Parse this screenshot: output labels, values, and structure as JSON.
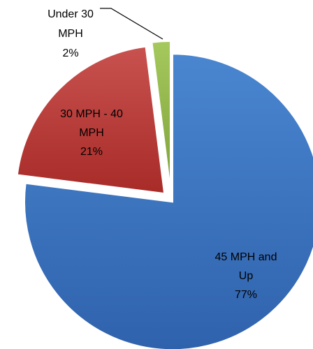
{
  "chart_data": {
    "type": "pie",
    "exploded": true,
    "slices": [
      {
        "category_lines": [
          "45 MPH and",
          "Up"
        ],
        "percent_label": "77%",
        "value": 77,
        "color": "#4F81BD"
      },
      {
        "category_lines": [
          "30 MPH - 40",
          "MPH"
        ],
        "percent_label": "21%",
        "value": 21,
        "color": "#C0504D"
      },
      {
        "category_lines": [
          "Under 30",
          "MPH"
        ],
        "percent_label": "2%",
        "value": 2,
        "color": "#9BBB59"
      }
    ]
  }
}
